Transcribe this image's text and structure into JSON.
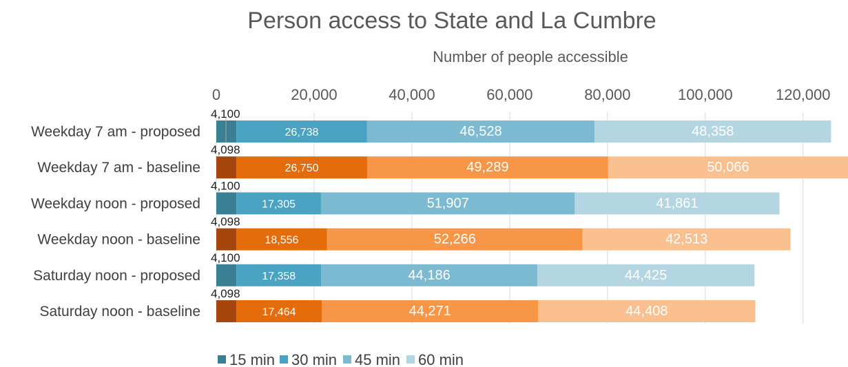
{
  "chart_data": {
    "type": "bar",
    "orientation": "horizontal",
    "stacked": true,
    "title": "Person access to State and La Cumbre",
    "xlabel": "Number of people accessible",
    "xlim": [
      0,
      130000
    ],
    "xticks": [
      0,
      20000,
      40000,
      60000,
      80000,
      100000,
      120000
    ],
    "xtick_labels": [
      "0",
      "20,000",
      "40,000",
      "60,000",
      "80,000",
      "100,000",
      "120,000"
    ],
    "x_axis_position": "top",
    "gridlines": true,
    "legend_position": "bottom",
    "categories": [
      "Weekday 7 am - proposed",
      "Weekday 7 am - baseline",
      "Weekday noon - proposed",
      "Weekday noon - baseline",
      "Saturday noon - proposed",
      "Saturday noon - baseline"
    ],
    "series": [
      {
        "name": "15 min",
        "values": [
          4100,
          4098,
          4100,
          4098,
          4100,
          4098
        ],
        "labels": [
          "4,100",
          "4,098",
          "4,100",
          "4,098",
          "4,100",
          "4,098"
        ]
      },
      {
        "name": "30 min",
        "values": [
          26738,
          26750,
          17305,
          18556,
          17358,
          17464
        ],
        "labels": [
          "26,738",
          "26,750",
          "17,305",
          "18,556",
          "17,358",
          "17,464"
        ]
      },
      {
        "name": "45 min",
        "values": [
          46528,
          49289,
          51907,
          52266,
          44186,
          44271
        ],
        "labels": [
          "46,528",
          "49,289",
          "51,907",
          "52,266",
          "44,186",
          "44,271"
        ]
      },
      {
        "name": "60 min",
        "values": [
          48358,
          50066,
          41861,
          42513,
          44425,
          44408
        ],
        "labels": [
          "48,358",
          "50,066",
          "41,861",
          "42,513",
          "44,425",
          "44,408"
        ]
      }
    ],
    "colors": {
      "proposed": [
        "#3a7f93",
        "#4aa3c2",
        "#7cbad2",
        "#b4d6e3"
      ],
      "baseline": [
        "#a5460e",
        "#e46c0a",
        "#f79646",
        "#fac090"
      ]
    },
    "legend_colors": [
      "#3a7f93",
      "#4aa3c2",
      "#7cbad2",
      "#b4d6e3"
    ]
  }
}
